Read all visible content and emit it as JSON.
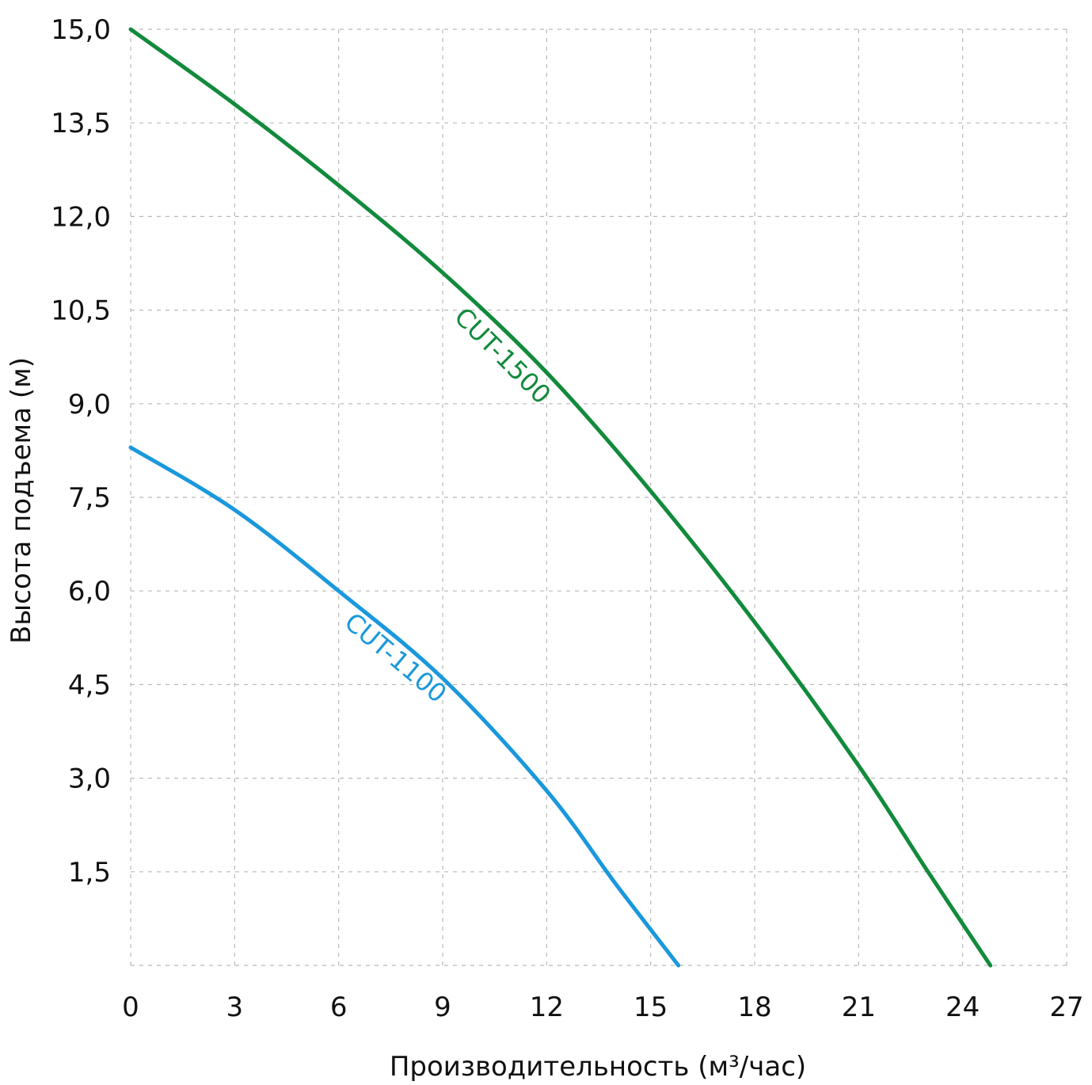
{
  "chart_data": {
    "type": "line",
    "xlabel": "Производительность (м³/час)",
    "ylabel": "Высота подъема (м)",
    "xlim": [
      0,
      27
    ],
    "ylim": [
      0,
      15
    ],
    "x_ticks": [
      0,
      3,
      6,
      9,
      12,
      15,
      18,
      21,
      24,
      27
    ],
    "x_tick_labels": [
      "0",
      "3",
      "6",
      "9",
      "12",
      "15",
      "18",
      "21",
      "24",
      "27"
    ],
    "y_ticks": [
      1.5,
      3.0,
      4.5,
      6.0,
      7.5,
      9.0,
      10.5,
      12.0,
      13.5,
      15.0
    ],
    "y_tick_labels": [
      "1,5",
      "3,0",
      "4,5",
      "6,0",
      "7,5",
      "9,0",
      "10,5",
      "12,0",
      "13,5",
      "15,0"
    ],
    "grid": true,
    "series": [
      {
        "name": "CUT-1500",
        "color": "#128a3c",
        "points": [
          [
            0,
            15.0
          ],
          [
            3,
            13.8
          ],
          [
            6,
            12.5
          ],
          [
            9,
            11.1
          ],
          [
            12,
            9.5
          ],
          [
            15,
            7.6
          ],
          [
            18,
            5.5
          ],
          [
            21,
            3.2
          ],
          [
            23,
            1.5
          ],
          [
            24.8,
            0
          ]
        ]
      },
      {
        "name": "CUT-1100",
        "color": "#1a98dc",
        "points": [
          [
            0,
            8.3
          ],
          [
            3,
            7.3
          ],
          [
            6,
            6.0
          ],
          [
            9,
            4.6
          ],
          [
            12,
            2.8
          ],
          [
            14,
            1.3
          ],
          [
            15.8,
            0
          ]
        ]
      }
    ]
  }
}
